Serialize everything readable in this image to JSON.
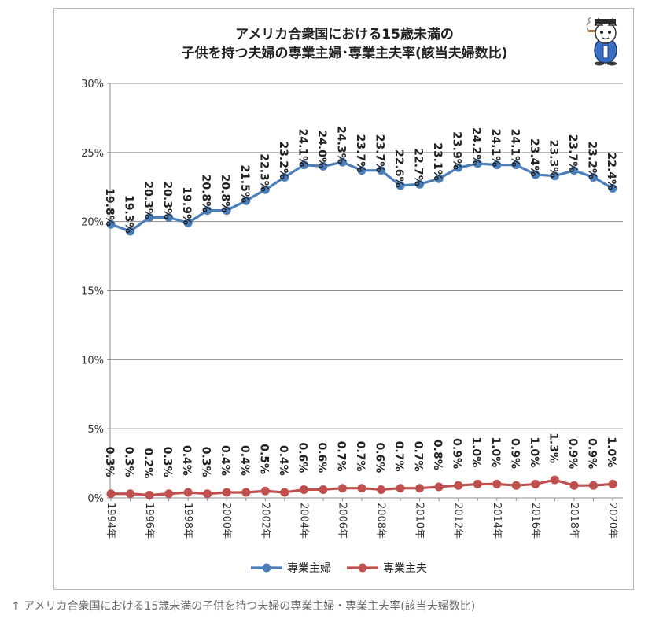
{
  "caption": "↑ アメリカ合衆国における15歳未満の子供を持つ夫婦の専業主婦・専業主夫率(該当夫婦数比)",
  "chart_data": {
    "type": "line",
    "title_lines": [
      "アメリカ合衆国における15歳未満の",
      "子供を持つ夫婦の専業主婦･専業主夫率(該当夫婦数比)"
    ],
    "ylim": [
      0,
      30
    ],
    "yticks": [
      "0%",
      "5%",
      "10%",
      "15%",
      "20%",
      "25%",
      "30%"
    ],
    "ytick_values": [
      0,
      5,
      10,
      15,
      20,
      25,
      30
    ],
    "x": [
      1994,
      1995,
      1996,
      1997,
      1998,
      1999,
      2000,
      2001,
      2002,
      2003,
      2004,
      2005,
      2006,
      2007,
      2008,
      2009,
      2010,
      2011,
      2012,
      2013,
      2014,
      2015,
      2016,
      2017,
      2018,
      2019,
      2020
    ],
    "xtick_labels": [
      "1994年",
      "1996年",
      "1998年",
      "2000年",
      "2002年",
      "2004年",
      "2006年",
      "2008年",
      "2010年",
      "2012年",
      "2014年",
      "2016年",
      "2018年",
      "2020年"
    ],
    "xtick_values": [
      1994,
      1996,
      1998,
      2000,
      2002,
      2004,
      2006,
      2008,
      2010,
      2012,
      2014,
      2016,
      2018,
      2020
    ],
    "grid": true,
    "legend_position": "bottom",
    "series": [
      {
        "name": "専業主婦",
        "color": "#4a7ebb",
        "values": [
          19.8,
          19.3,
          20.3,
          20.3,
          19.9,
          20.8,
          20.8,
          21.5,
          22.3,
          23.2,
          24.1,
          24.0,
          24.3,
          23.7,
          23.7,
          22.6,
          22.7,
          23.1,
          23.9,
          24.2,
          24.1,
          24.1,
          23.4,
          23.3,
          23.7,
          23.2,
          22.4
        ],
        "labels": [
          "19.8%",
          "19.3%",
          "20.3%",
          "20.3%",
          "19.9%",
          "20.8%",
          "20.8%",
          "21.5%",
          "22.3%",
          "23.2%",
          "24.1%",
          "24.0%",
          "24.3%",
          "23.7%",
          "23.7%",
          "22.6%",
          "22.7%",
          "23.1%",
          "23.9%",
          "24.2%",
          "24.1%",
          "24.1%",
          "23.4%",
          "23.3%",
          "23.7%",
          "23.2%",
          "22.4%"
        ]
      },
      {
        "name": "専業主夫",
        "color": "#c0504d",
        "values": [
          0.3,
          0.3,
          0.2,
          0.3,
          0.4,
          0.3,
          0.4,
          0.4,
          0.5,
          0.4,
          0.6,
          0.6,
          0.7,
          0.7,
          0.6,
          0.7,
          0.7,
          0.8,
          0.9,
          1.0,
          1.0,
          0.9,
          1.0,
          1.3,
          0.9,
          0.9,
          1.0
        ],
        "labels": [
          "0.3%",
          "0.3%",
          "0.2%",
          "0.3%",
          "0.4%",
          "0.3%",
          "0.4%",
          "0.4%",
          "0.5%",
          "0.4%",
          "0.6%",
          "0.6%",
          "0.7%",
          "0.7%",
          "0.6%",
          "0.7%",
          "0.7%",
          "0.8%",
          "0.9%",
          "1.0%",
          "1.0%",
          "0.9%",
          "1.0%",
          "1.3%",
          "0.9%",
          "0.9%",
          "1.0%"
        ]
      }
    ]
  }
}
